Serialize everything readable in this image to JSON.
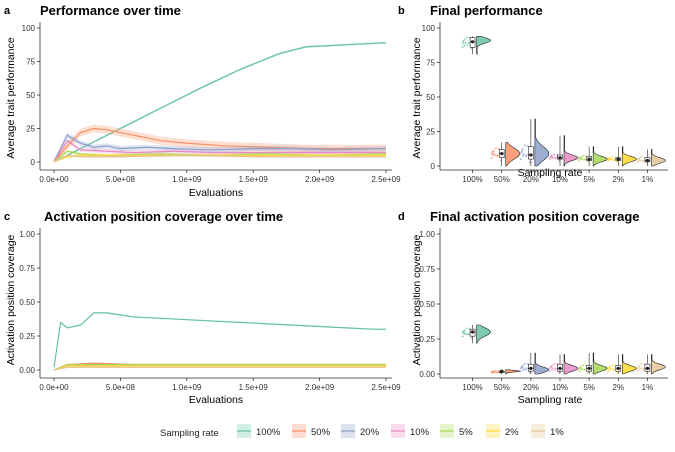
{
  "colors": {
    "100%": "#66c2a5",
    "50%": "#fc8d62",
    "20%": "#8da0cb",
    "10%": "#e78ac3",
    "5%": "#a6d854",
    "2%": "#ffd92f",
    "1%": "#e5c494"
  },
  "legend": {
    "title": "Sampling rate",
    "items": [
      "100%",
      "50%",
      "20%",
      "10%",
      "5%",
      "2%",
      "1%"
    ]
  },
  "chart_data": [
    {
      "panel": "a",
      "type": "line",
      "title": "Performance over time",
      "xlabel": "Evaluations",
      "ylabel": "Average trait performance",
      "xlim": [
        0,
        2500000000
      ],
      "ylim": [
        0,
        100
      ],
      "xticks": [
        0,
        500000000,
        1000000000,
        1500000000,
        2000000000,
        2500000000
      ],
      "xtick_labels": [
        "0.0e+00",
        "5.0e+08",
        "1.0e+09",
        "1.5e+09",
        "2.0e+09",
        "2.5e+09"
      ],
      "yticks": [
        0,
        25,
        50,
        75,
        100
      ],
      "ytick_labels": [
        "0",
        "25",
        "50",
        "75",
        "100"
      ],
      "series": [
        {
          "name": "100%",
          "x": [
            0,
            100000000,
            300000000,
            500000000,
            800000000,
            1100000000,
            1400000000,
            1700000000,
            1900000000,
            2100000000,
            2300000000,
            2500000000
          ],
          "y": [
            0,
            5,
            15,
            25,
            40,
            55,
            69,
            81,
            86,
            87,
            88,
            89
          ],
          "band": 0.8
        },
        {
          "name": "50%",
          "x": [
            0,
            100000000,
            200000000,
            300000000,
            400000000,
            600000000,
            800000000,
            1000000000,
            1300000000,
            1600000000,
            1900000000,
            2200000000,
            2500000000
          ],
          "y": [
            0,
            12,
            22,
            25,
            24,
            20,
            16,
            14,
            12,
            11,
            10,
            10,
            10
          ],
          "band": 3
        },
        {
          "name": "20%",
          "x": [
            0,
            100000000,
            200000000,
            300000000,
            400000000,
            500000000,
            700000000,
            900000000,
            1200000000,
            1500000000,
            1800000000,
            2100000000,
            2500000000
          ],
          "y": [
            0,
            20,
            14,
            11,
            12,
            10,
            11,
            10,
            9,
            10,
            10,
            9,
            10
          ],
          "band": 2
        },
        {
          "name": "10%",
          "x": [
            0,
            100000000,
            200000000,
            400000000,
            600000000,
            900000000,
            1200000000,
            1600000000,
            2000000000,
            2500000000
          ],
          "y": [
            0,
            16,
            9,
            8,
            7,
            8,
            7,
            7,
            7,
            7
          ],
          "band": 1.5
        },
        {
          "name": "5%",
          "x": [
            0,
            100000000,
            200000000,
            400000000,
            800000000,
            1200000000,
            1600000000,
            2000000000,
            2500000000
          ],
          "y": [
            0,
            8,
            6,
            5,
            6,
            5,
            6,
            5,
            6
          ],
          "band": 1
        },
        {
          "name": "2%",
          "x": [
            0,
            100000000,
            200000000,
            500000000,
            1000000000,
            1500000000,
            2000000000,
            2500000000
          ],
          "y": [
            0,
            4,
            5,
            5,
            5,
            5,
            5,
            5
          ],
          "band": 1
        },
        {
          "name": "1%",
          "x": [
            0,
            100000000,
            200000000,
            500000000,
            1000000000,
            1500000000,
            2000000000,
            2500000000
          ],
          "y": [
            0,
            5,
            4,
            4,
            5,
            4,
            4,
            4
          ],
          "band": 1
        }
      ]
    },
    {
      "panel": "b",
      "type": "violin",
      "title": "Final performance",
      "xlabel": "Sampling rate",
      "ylabel": "Average trait performance",
      "ylim": [
        0,
        100
      ],
      "yticks": [
        0,
        25,
        50,
        75,
        100
      ],
      "ytick_labels": [
        "0",
        "25",
        "50",
        "75",
        "100"
      ],
      "categories": [
        "100%",
        "50%",
        "20%",
        "10%",
        "5%",
        "2%",
        "1%"
      ],
      "groups": [
        {
          "name": "100%",
          "min": 81,
          "q1": 86,
          "median": 90,
          "q3": 93,
          "max": 94,
          "mode": 91,
          "spread": 2
        },
        {
          "name": "50%",
          "min": 0,
          "q1": 6,
          "median": 9,
          "q3": 12,
          "max": 17,
          "mode": 9,
          "spread": 4
        },
        {
          "name": "20%",
          "min": 0,
          "q1": 5,
          "median": 8,
          "q3": 14,
          "max": 34,
          "mode": 9,
          "spread": 5
        },
        {
          "name": "10%",
          "min": 0,
          "q1": 5,
          "median": 6,
          "q3": 8,
          "max": 22,
          "mode": 6,
          "spread": 2
        },
        {
          "name": "5%",
          "min": 0,
          "q1": 4,
          "median": 5,
          "q3": 7,
          "max": 14,
          "mode": 5,
          "spread": 2
        },
        {
          "name": "2%",
          "min": 0,
          "q1": 4,
          "median": 5,
          "q3": 6,
          "max": 14,
          "mode": 5,
          "spread": 2
        },
        {
          "name": "1%",
          "min": 0,
          "q1": 3,
          "median": 4,
          "q3": 6,
          "max": 12,
          "mode": 4,
          "spread": 2
        }
      ]
    },
    {
      "panel": "c",
      "type": "line",
      "title": "Activation position coverage over time",
      "xlabel": "Evaluations",
      "ylabel": "Activation position coverage",
      "xlim": [
        0,
        2500000000
      ],
      "ylim": [
        0,
        1
      ],
      "xticks": [
        0,
        500000000,
        1000000000,
        1500000000,
        2000000000,
        2500000000
      ],
      "xtick_labels": [
        "0.0e+00",
        "5.0e+08",
        "1.0e+09",
        "1.5e+09",
        "2.0e+09",
        "2.5e+09"
      ],
      "yticks": [
        0,
        0.25,
        0.5,
        0.75,
        1
      ],
      "ytick_labels": [
        "0.00",
        "0.25",
        "0.50",
        "0.75",
        "1.00"
      ],
      "series": [
        {
          "name": "100%",
          "x": [
            0,
            50000000,
            100000000,
            200000000,
            300000000,
            400000000,
            600000000,
            800000000,
            1000000000,
            1200000000,
            1400000000,
            1600000000,
            1800000000,
            2000000000,
            2200000000,
            2400000000,
            2500000000
          ],
          "y": [
            0.02,
            0.35,
            0.31,
            0.33,
            0.42,
            0.42,
            0.39,
            0.38,
            0.37,
            0.36,
            0.35,
            0.34,
            0.33,
            0.32,
            0.31,
            0.3,
            0.3
          ],
          "band": 0.005
        },
        {
          "name": "50%",
          "x": [
            0,
            100000000,
            300000000,
            600000000,
            1000000000,
            1500000000,
            2000000000,
            2500000000
          ],
          "y": [
            0,
            0.04,
            0.05,
            0.04,
            0.04,
            0.04,
            0.04,
            0.04
          ],
          "band": 0.005
        },
        {
          "name": "20%",
          "x": [
            0,
            100000000,
            300000000,
            600000000,
            1000000000,
            1500000000,
            2000000000,
            2500000000
          ],
          "y": [
            0,
            0.04,
            0.04,
            0.04,
            0.04,
            0.04,
            0.04,
            0.04
          ],
          "band": 0.005
        },
        {
          "name": "10%",
          "x": [
            0,
            100000000,
            300000000,
            600000000,
            1000000000,
            1500000000,
            2000000000,
            2500000000
          ],
          "y": [
            0,
            0.03,
            0.04,
            0.04,
            0.04,
            0.04,
            0.04,
            0.04
          ],
          "band": 0.005
        },
        {
          "name": "5%",
          "x": [
            0,
            100000000,
            300000000,
            600000000,
            1000000000,
            1500000000,
            2000000000,
            2500000000
          ],
          "y": [
            0,
            0.04,
            0.04,
            0.04,
            0.04,
            0.04,
            0.04,
            0.04
          ],
          "band": 0.005
        },
        {
          "name": "2%",
          "x": [
            0,
            100000000,
            300000000,
            600000000,
            1000000000,
            1500000000,
            2000000000,
            2500000000
          ],
          "y": [
            0,
            0.03,
            0.03,
            0.03,
            0.03,
            0.03,
            0.03,
            0.03
          ],
          "band": 0.005
        },
        {
          "name": "1%",
          "x": [
            0,
            100000000,
            300000000,
            600000000,
            1000000000,
            1500000000,
            2000000000,
            2500000000
          ],
          "y": [
            0,
            0.02,
            0.02,
            0.02,
            0.02,
            0.02,
            0.02,
            0.02
          ],
          "band": 0.005
        }
      ]
    },
    {
      "panel": "d",
      "type": "violin",
      "title": "Final activation position coverage",
      "xlabel": "Sampling rate",
      "ylabel": "Activation position coverage",
      "ylim": [
        0,
        1
      ],
      "yticks": [
        0,
        0.25,
        0.5,
        0.75,
        1
      ],
      "ytick_labels": [
        "0.00",
        "0.25",
        "0.50",
        "0.75",
        "1.00"
      ],
      "categories": [
        "100%",
        "50%",
        "20%",
        "10%",
        "5%",
        "2%",
        "1%"
      ],
      "groups": [
        {
          "name": "100%",
          "min": 0.22,
          "q1": 0.27,
          "median": 0.3,
          "q3": 0.32,
          "max": 0.35,
          "mode": 0.3,
          "spread": 0.03
        },
        {
          "name": "50%",
          "min": 0.0,
          "q1": 0.01,
          "median": 0.02,
          "q3": 0.02,
          "max": 0.03,
          "mode": 0.02,
          "spread": 0.006
        },
        {
          "name": "20%",
          "min": 0.0,
          "q1": 0.02,
          "median": 0.04,
          "q3": 0.07,
          "max": 0.15,
          "mode": 0.03,
          "spread": 0.02
        },
        {
          "name": "10%",
          "min": 0.0,
          "q1": 0.02,
          "median": 0.04,
          "q3": 0.07,
          "max": 0.14,
          "mode": 0.04,
          "spread": 0.02
        },
        {
          "name": "5%",
          "min": 0.0,
          "q1": 0.02,
          "median": 0.04,
          "q3": 0.06,
          "max": 0.15,
          "mode": 0.04,
          "spread": 0.02
        },
        {
          "name": "2%",
          "min": 0.0,
          "q1": 0.02,
          "median": 0.04,
          "q3": 0.06,
          "max": 0.14,
          "mode": 0.04,
          "spread": 0.02
        },
        {
          "name": "1%",
          "min": 0.0,
          "q1": 0.02,
          "median": 0.04,
          "q3": 0.07,
          "max": 0.14,
          "mode": 0.05,
          "spread": 0.02
        }
      ]
    }
  ]
}
